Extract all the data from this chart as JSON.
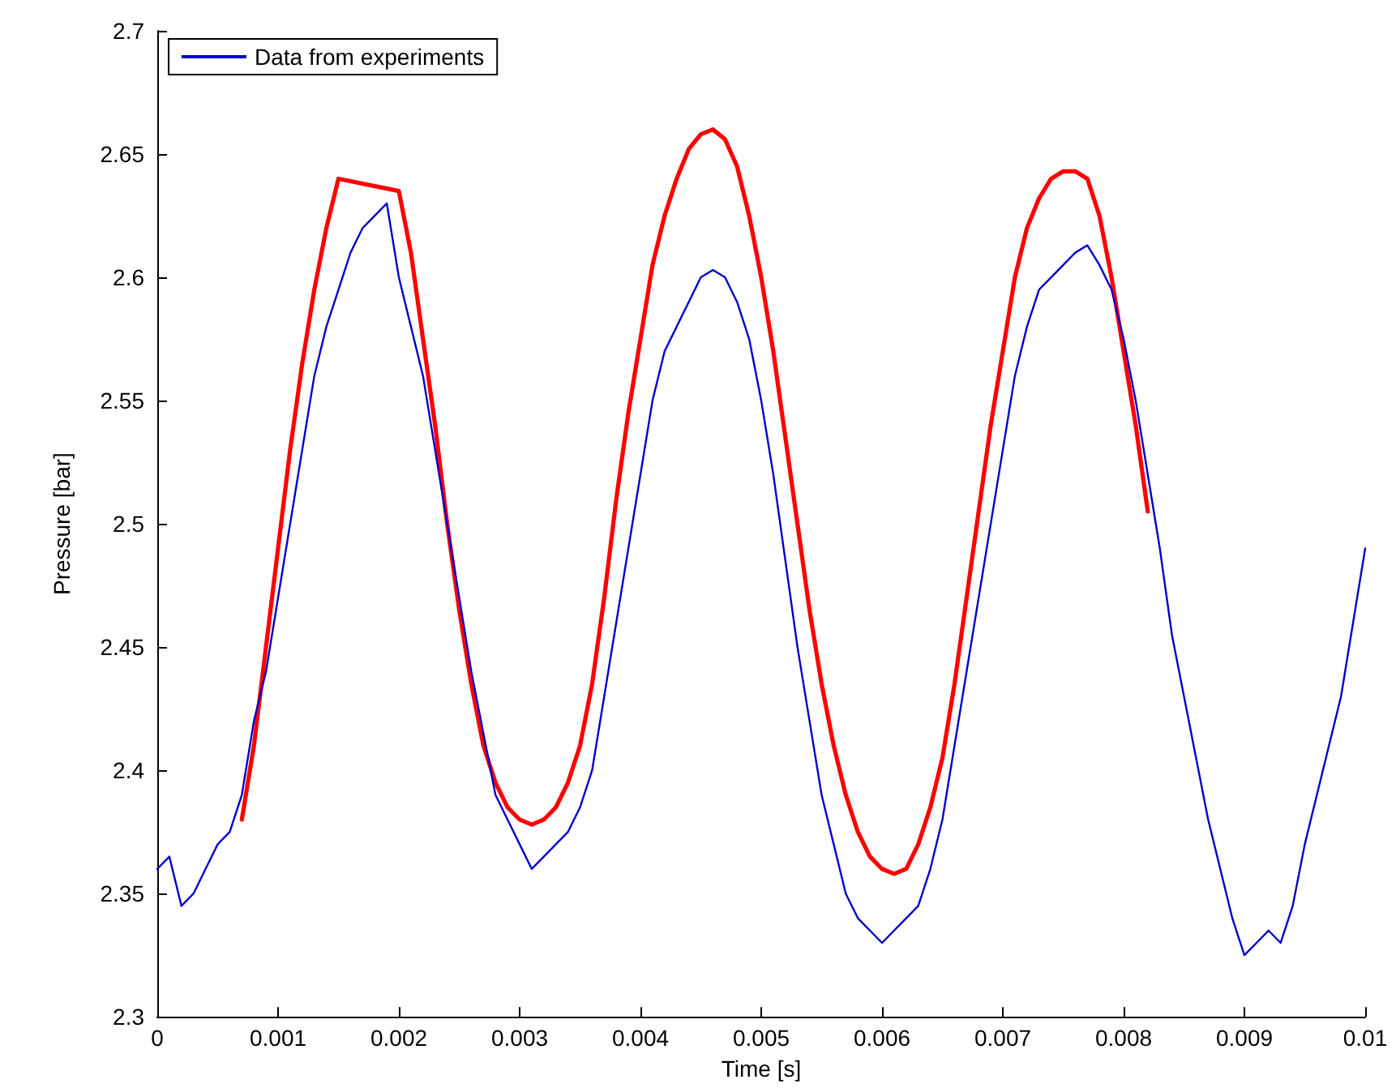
{
  "chart_data": {
    "type": "line",
    "xlabel": "Time [s]",
    "ylabel": "Pressure [bar]",
    "xlim": [
      0,
      0.01
    ],
    "ylim": [
      2.3,
      2.7
    ],
    "xticks": [
      0,
      0.001,
      0.002,
      0.003,
      0.004,
      0.005,
      0.006,
      0.007,
      0.008,
      0.009,
      0.01
    ],
    "yticks": [
      2.3,
      2.35,
      2.4,
      2.45,
      2.5,
      2.55,
      2.6,
      2.65,
      2.7
    ],
    "grid": false,
    "legend": "top left",
    "marker": "none",
    "line_style": "solid",
    "series": [
      {
        "color": "#ff0000",
        "x": [
          0.0007,
          0.0008,
          0.0009,
          0.001,
          0.0011,
          0.0012,
          0.0013,
          0.0014,
          0.0015,
          0.002,
          0.0021,
          0.0022,
          0.0023,
          0.0024,
          0.0025,
          0.0026,
          0.0027,
          0.0028,
          0.0029,
          0.003,
          0.0031,
          0.0032,
          0.0033,
          0.0034,
          0.0035,
          0.0036,
          0.0037,
          0.0038,
          0.0039,
          0.004,
          0.0041,
          0.0042,
          0.0043,
          0.0044,
          0.0045,
          0.0046,
          0.0047,
          0.0048,
          0.0049,
          0.005,
          0.0051,
          0.0052,
          0.0053,
          0.0054,
          0.0055,
          0.0056,
          0.0057,
          0.0058,
          0.0059,
          0.006,
          0.0061,
          0.0062,
          0.0063,
          0.0064,
          0.0065,
          0.0066,
          0.0067,
          0.0068,
          0.0069,
          0.007,
          0.0071,
          0.0072,
          0.0073,
          0.0074,
          0.0075,
          0.0076,
          0.0077,
          0.0078,
          0.0079,
          0.008,
          0.0081,
          0.0082
        ],
        "values": [
          2.38,
          2.41,
          2.45,
          2.49,
          2.53,
          2.565,
          2.595,
          2.62,
          2.64,
          2.635,
          2.61,
          2.575,
          2.54,
          2.5,
          2.465,
          2.435,
          2.41,
          2.395,
          2.385,
          2.38,
          2.378,
          2.38,
          2.385,
          2.395,
          2.41,
          2.435,
          2.47,
          2.51,
          2.545,
          2.575,
          2.605,
          2.625,
          2.64,
          2.652,
          2.658,
          2.66,
          2.656,
          2.645,
          2.625,
          2.6,
          2.57,
          2.535,
          2.5,
          2.465,
          2.435,
          2.41,
          2.39,
          2.375,
          2.365,
          2.36,
          2.358,
          2.36,
          2.37,
          2.385,
          2.405,
          2.435,
          2.47,
          2.505,
          2.54,
          2.57,
          2.6,
          2.62,
          2.632,
          2.64,
          2.643,
          2.643,
          2.64,
          2.625,
          2.6,
          2.57,
          2.54,
          2.505
        ]
      },
      {
        "name": "Data from experiments",
        "color": "#0000cc",
        "x": [
          0,
          0.0001,
          0.0002,
          0.0003,
          0.0004,
          0.0005,
          0.0006,
          0.0007,
          0.0008,
          0.0009,
          0.001,
          0.0011,
          0.0012,
          0.0013,
          0.0014,
          0.0015,
          0.0016,
          0.0017,
          0.0018,
          0.0019,
          0.002,
          0.0021,
          0.0022,
          0.0023,
          0.0024,
          0.0025,
          0.0026,
          0.0027,
          0.0028,
          0.0029,
          0.003,
          0.0031,
          0.0032,
          0.0033,
          0.0034,
          0.0035,
          0.0036,
          0.0037,
          0.0038,
          0.0039,
          0.004,
          0.0041,
          0.0042,
          0.0043,
          0.0044,
          0.0045,
          0.0046,
          0.0047,
          0.0048,
          0.0049,
          0.005,
          0.0051,
          0.0052,
          0.0053,
          0.0054,
          0.0055,
          0.0056,
          0.0057,
          0.0058,
          0.0059,
          0.006,
          0.0061,
          0.0062,
          0.0063,
          0.0064,
          0.0065,
          0.0066,
          0.0067,
          0.0068,
          0.0069,
          0.007,
          0.0071,
          0.0072,
          0.0073,
          0.0074,
          0.0075,
          0.0076,
          0.0077,
          0.0078,
          0.0079,
          0.008,
          0.0081,
          0.0082,
          0.0083,
          0.0084,
          0.0085,
          0.0086,
          0.0087,
          0.0088,
          0.0089,
          0.009,
          0.0091,
          0.0092,
          0.0093,
          0.0094,
          0.0095,
          0.0096,
          0.0097,
          0.0098,
          0.0099,
          0.01
        ],
        "values": [
          2.36,
          2.365,
          2.345,
          2.35,
          2.36,
          2.37,
          2.375,
          2.39,
          2.42,
          2.44,
          2.47,
          2.5,
          2.53,
          2.56,
          2.58,
          2.595,
          2.61,
          2.62,
          2.625,
          2.63,
          2.6,
          2.58,
          2.56,
          2.53,
          2.5,
          2.47,
          2.44,
          2.415,
          2.39,
          2.38,
          2.37,
          2.36,
          2.365,
          2.37,
          2.375,
          2.385,
          2.4,
          2.43,
          2.46,
          2.49,
          2.52,
          2.55,
          2.57,
          2.58,
          2.59,
          2.6,
          2.603,
          2.6,
          2.59,
          2.575,
          2.55,
          2.52,
          2.485,
          2.45,
          2.42,
          2.39,
          2.37,
          2.35,
          2.34,
          2.335,
          2.33,
          2.335,
          2.34,
          2.345,
          2.36,
          2.38,
          2.41,
          2.44,
          2.47,
          2.5,
          2.53,
          2.56,
          2.58,
          2.595,
          2.6,
          2.605,
          2.61,
          2.613,
          2.605,
          2.595,
          2.575,
          2.55,
          2.52,
          2.49,
          2.455,
          2.43,
          2.405,
          2.38,
          2.36,
          2.34,
          2.325,
          2.33,
          2.335,
          2.33,
          2.345,
          2.37,
          2.39,
          2.41,
          2.43,
          2.46,
          2.49
        ]
      }
    ]
  }
}
